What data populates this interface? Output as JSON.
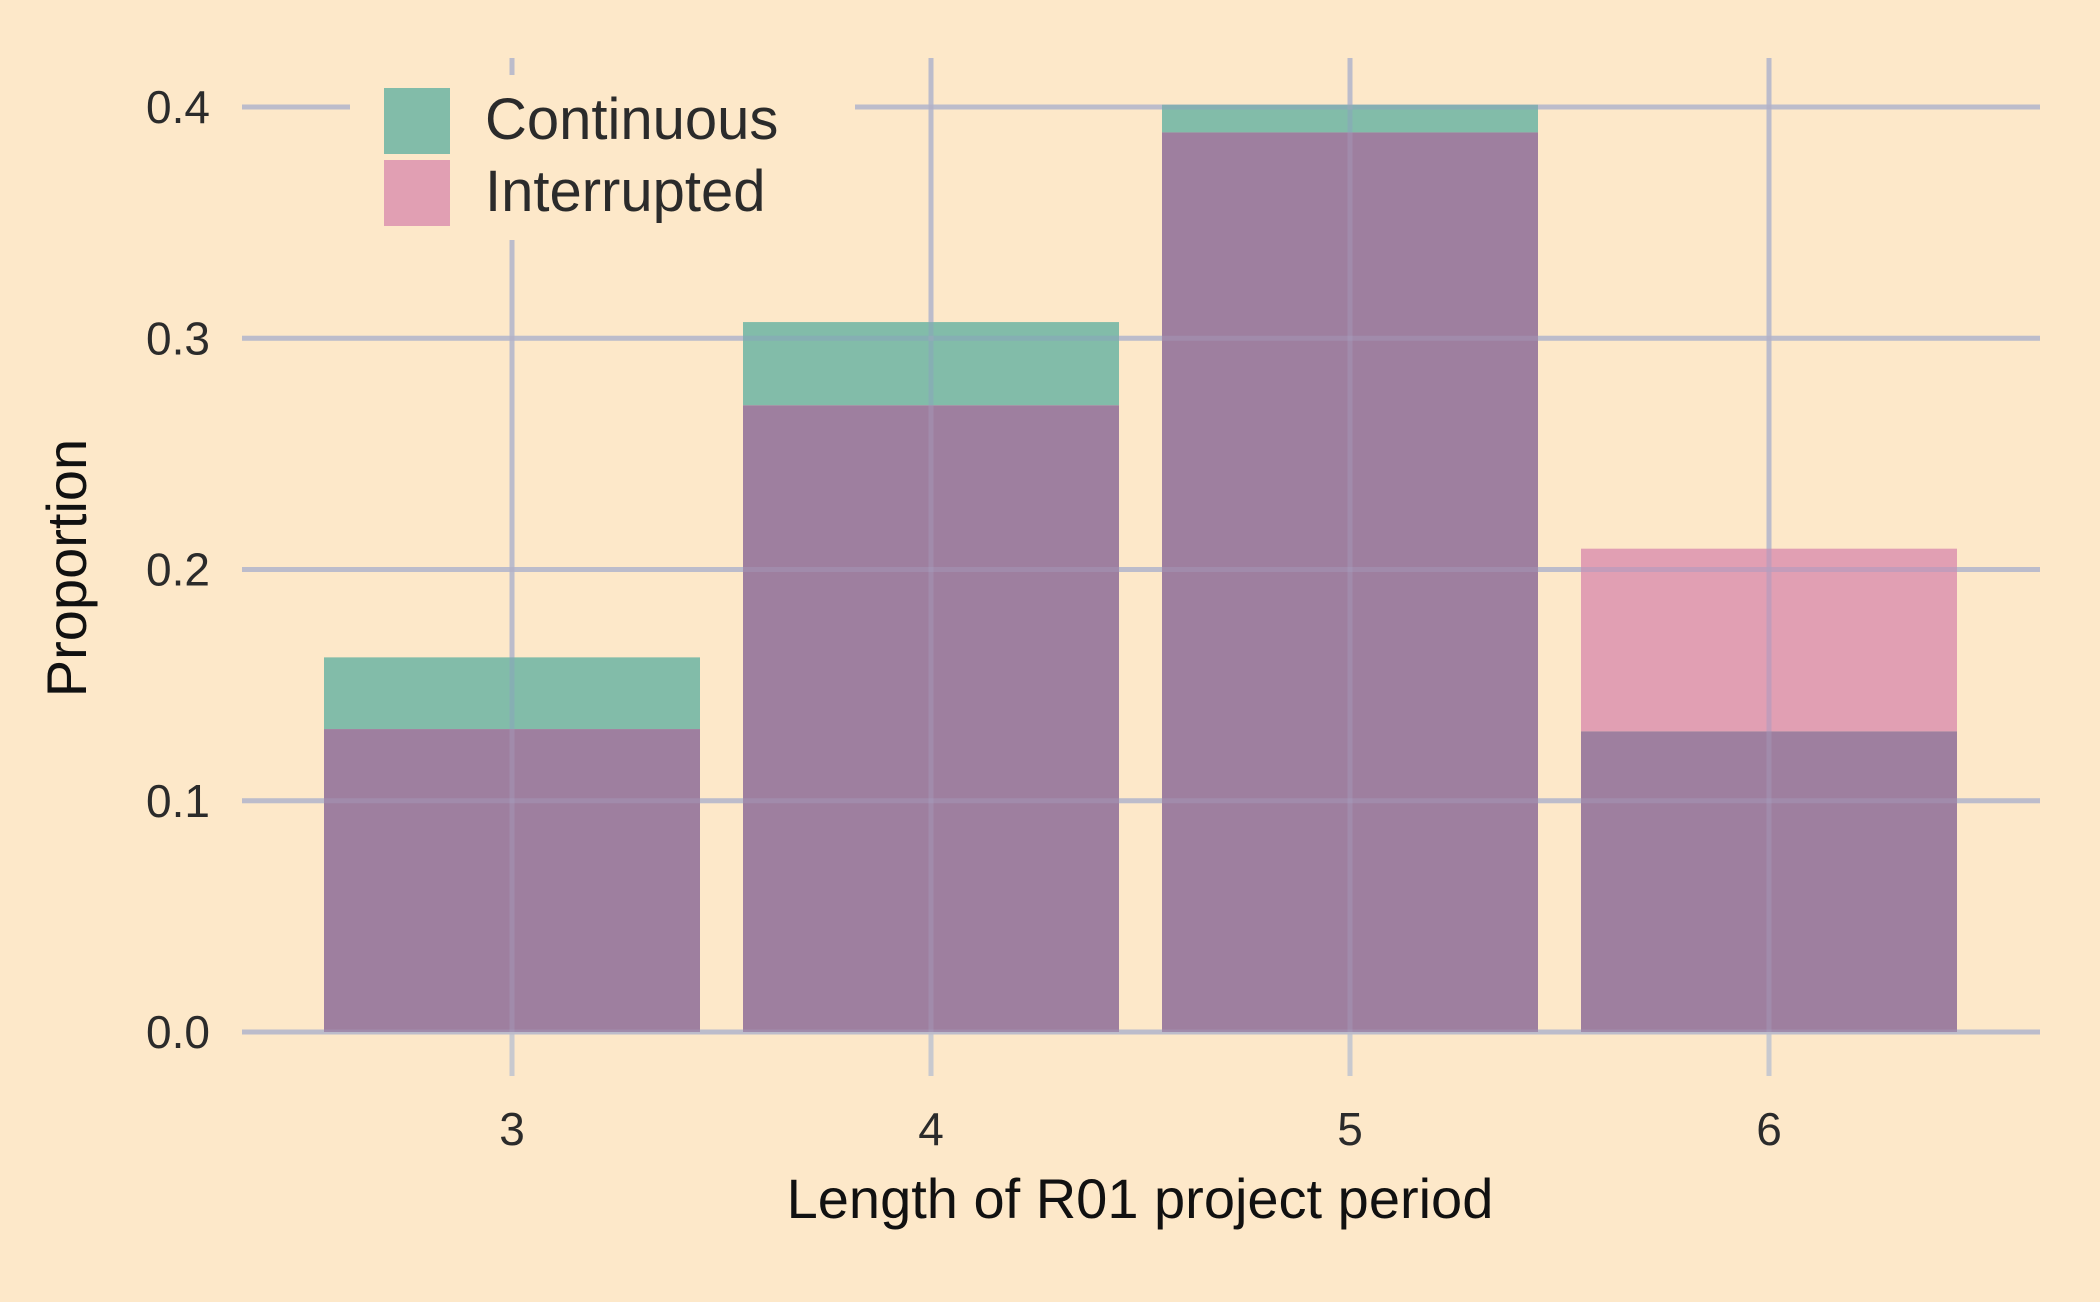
{
  "chart_data": {
    "type": "bar",
    "title": "",
    "xlabel": "Length of R01 project period",
    "ylabel": "Proportion",
    "categories": [
      "3",
      "4",
      "5",
      "6"
    ],
    "series": [
      {
        "name": "Continuous",
        "values": [
          0.162,
          0.307,
          0.401,
          0.13
        ],
        "color": "#5fb0a0"
      },
      {
        "name": "Interrupted",
        "values": [
          0.131,
          0.271,
          0.389,
          0.209
        ],
        "color": "#d98aad"
      }
    ],
    "overlap_color": "#9e7f9f",
    "ylim": [
      0,
      0.42
    ],
    "yticks": [
      0.0,
      0.1,
      0.2,
      0.3,
      0.4
    ],
    "ytick_labels": [
      "0.0",
      "0.1",
      "0.2",
      "0.3",
      "0.4"
    ],
    "grid": true,
    "grid_color": "#c8c9cf",
    "background": "#fde8c9",
    "legend_position": "top-left",
    "bar_mode": "overlay"
  }
}
